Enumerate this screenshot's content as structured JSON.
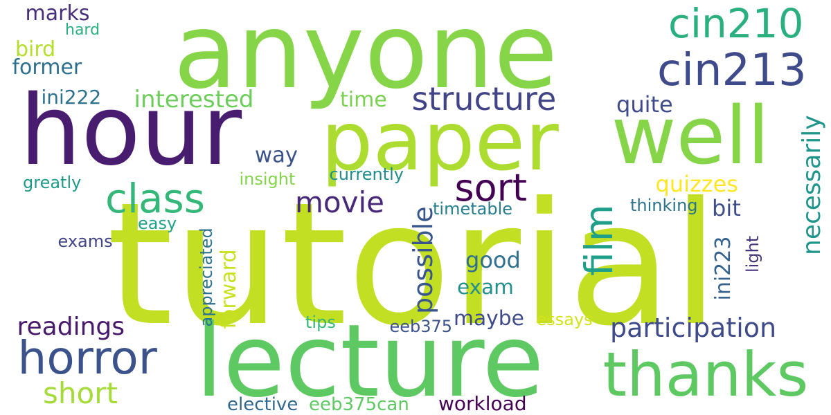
{
  "words": [
    {
      "text": "tutorial",
      "color": "#c2df23",
      "orient": "h"
    },
    {
      "text": "anyone",
      "color": "#86d549",
      "orient": "h"
    },
    {
      "text": "hour",
      "color": "#481d6f",
      "orient": "h"
    },
    {
      "text": "lecture",
      "color": "#5ec962",
      "orient": "h"
    },
    {
      "text": "paper",
      "color": "#addc30",
      "orient": "h"
    },
    {
      "text": "well",
      "color": "#86d549",
      "orient": "h"
    },
    {
      "text": "thanks",
      "color": "#5ec962",
      "orient": "h"
    },
    {
      "text": "horror",
      "color": "#3b528b",
      "orient": "h"
    },
    {
      "text": "cin213",
      "color": "#3e4a89",
      "orient": "h"
    },
    {
      "text": "cin210",
      "color": "#2ab07f",
      "orient": "h"
    },
    {
      "text": "class",
      "color": "#35b779",
      "orient": "h"
    },
    {
      "text": "sort",
      "color": "#440154",
      "orient": "h"
    },
    {
      "text": "film",
      "color": "#1f9e89",
      "orient": "v"
    },
    {
      "text": "structure",
      "color": "#414487",
      "orient": "h"
    },
    {
      "text": "movie",
      "color": "#482878",
      "orient": "h"
    },
    {
      "text": "short",
      "color": "#a5db36",
      "orient": "h"
    },
    {
      "text": "participation",
      "color": "#3e4a89",
      "orient": "h"
    },
    {
      "text": "readings",
      "color": "#481a6c",
      "orient": "h"
    },
    {
      "text": "interested",
      "color": "#6ccd5a",
      "orient": "h"
    },
    {
      "text": "necessarily",
      "color": "#1f958b",
      "orient": "v"
    },
    {
      "text": "possible",
      "color": "#39568c",
      "orient": "v"
    },
    {
      "text": "forward",
      "color": "#c8e020",
      "orient": "v"
    },
    {
      "text": "quizzes",
      "color": "#fde725",
      "orient": "h"
    },
    {
      "text": "former",
      "color": "#2d708e",
      "orient": "h"
    },
    {
      "text": "ini222",
      "color": "#2c728e",
      "orient": "h"
    },
    {
      "text": "ini223",
      "color": "#34618d",
      "orient": "v"
    },
    {
      "text": "marks",
      "color": "#472d7b",
      "orient": "h"
    },
    {
      "text": "bird",
      "color": "#b5de2b",
      "orient": "h"
    },
    {
      "text": "way",
      "color": "#3b528b",
      "orient": "h"
    },
    {
      "text": "time",
      "color": "#7ad151",
      "orient": "h"
    },
    {
      "text": "quite",
      "color": "#3e4a89",
      "orient": "h"
    },
    {
      "text": "good",
      "color": "#2e6e8e",
      "orient": "h"
    },
    {
      "text": "exam",
      "color": "#21918c",
      "orient": "h"
    },
    {
      "text": "maybe",
      "color": "#3e4a89",
      "orient": "h"
    },
    {
      "text": "bit",
      "color": "#3e4c8a",
      "orient": "h"
    },
    {
      "text": "thinking",
      "color": "#2c728e",
      "orient": "h"
    },
    {
      "text": "light",
      "color": "#46337e",
      "orient": "v"
    },
    {
      "text": "hard",
      "color": "#2ab07f",
      "orient": "h"
    },
    {
      "text": "greatly",
      "color": "#1f9a8a",
      "orient": "h"
    },
    {
      "text": "insight",
      "color": "#84d44b",
      "orient": "h"
    },
    {
      "text": "currently",
      "color": "#228c8d",
      "orient": "h"
    },
    {
      "text": "timetable",
      "color": "#277f8e",
      "orient": "h"
    },
    {
      "text": "easy",
      "color": "#1fa187",
      "orient": "h"
    },
    {
      "text": "exams",
      "color": "#414487",
      "orient": "h"
    },
    {
      "text": "appreciated",
      "color": "#2c728e",
      "orient": "v"
    },
    {
      "text": "tips",
      "color": "#35b779",
      "orient": "h"
    },
    {
      "text": "eeb375",
      "color": "#3b528b",
      "orient": "h"
    },
    {
      "text": "essays",
      "color": "#d2e21b",
      "orient": "h"
    },
    {
      "text": "elective",
      "color": "#31688e",
      "orient": "h"
    },
    {
      "text": "eeb375can",
      "color": "#5ec962",
      "orient": "h"
    },
    {
      "text": "workload",
      "color": "#440154",
      "orient": "h"
    }
  ]
}
